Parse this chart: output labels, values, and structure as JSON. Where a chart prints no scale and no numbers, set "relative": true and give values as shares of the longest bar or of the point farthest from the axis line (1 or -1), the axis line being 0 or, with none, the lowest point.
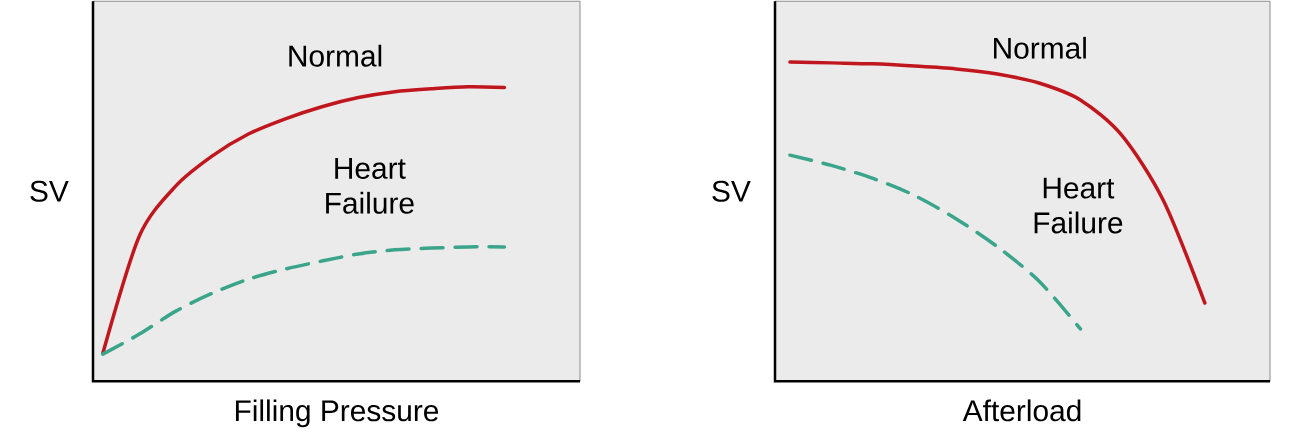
{
  "chart_data": [
    {
      "type": "line",
      "relative": true,
      "xlabel": "Filling Pressure",
      "ylabel": "SV",
      "categories": [
        null,
        null,
        null,
        null,
        null,
        null,
        null,
        null,
        null,
        null,
        null,
        null
      ],
      "series": [
        {
          "name": "Normal",
          "color": "#c0171e",
          "line_style": "solid",
          "values": [
            0.095,
            0.493,
            0.663,
            0.765,
            0.84,
            0.891,
            0.932,
            0.963,
            0.983,
            0.993,
            1,
            0.997
          ]
        },
        {
          "name": "Heart Failure",
          "color": "#3aa58a",
          "line_style": "dashed",
          "values": [
            0.092,
            0.16,
            0.238,
            0.299,
            0.347,
            0.381,
            0.408,
            0.432,
            0.446,
            0.452,
            0.456,
            0.456
          ]
        }
      ]
    },
    {
      "type": "line",
      "relative": true,
      "xlabel": "Afterload",
      "ylabel": "SV",
      "categories": [
        null,
        null,
        null,
        null,
        null,
        null,
        null,
        null,
        null,
        null,
        null
      ],
      "series": [
        {
          "name": "Normal",
          "color": "#c0171e",
          "line_style": "solid",
          "values": [
            1,
            0.997,
            0.994,
            0.987,
            0.978,
            0.962,
            0.934,
            0.881,
            0.77,
            0.566,
            0.245
          ]
        },
        {
          "name": "Heart Failure",
          "color": "#3aa58a",
          "line_style": "dashed",
          "values": [
            0.708,
            0.676,
            0.635,
            0.582,
            0.509,
            0.421,
            0.314,
            0.164,
            null,
            null,
            null
          ]
        }
      ]
    }
  ]
}
